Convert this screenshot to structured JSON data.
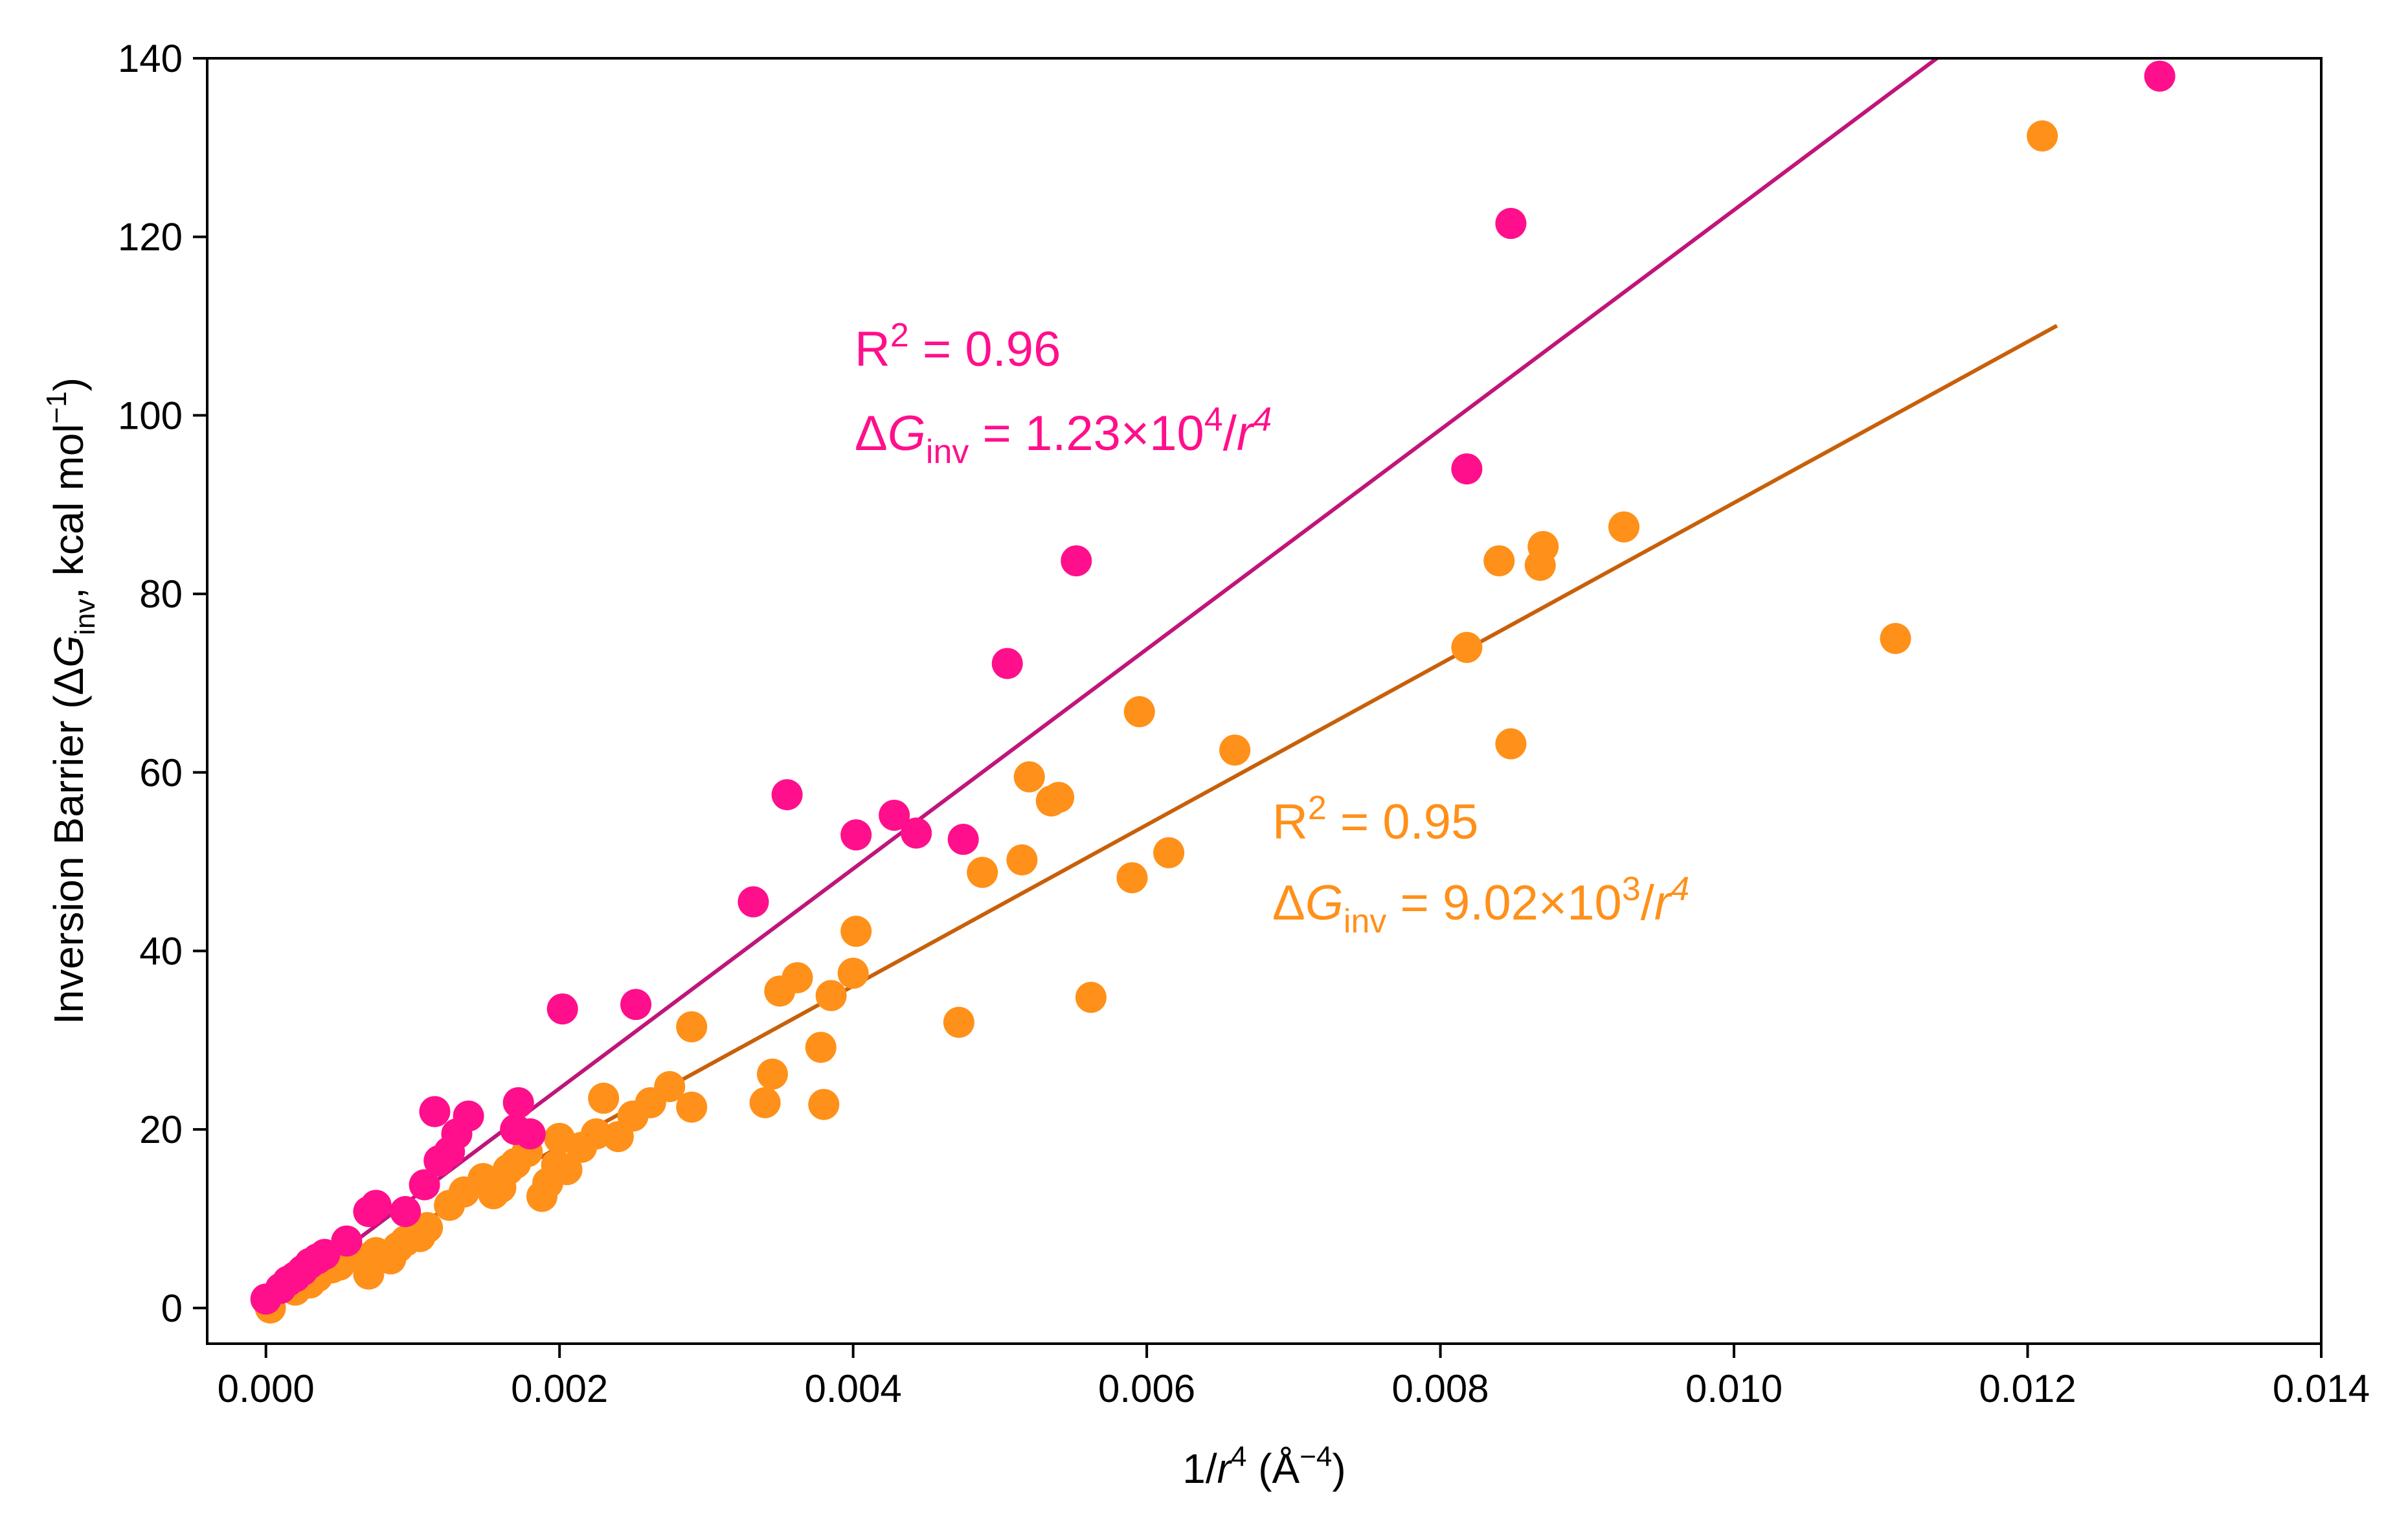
{
  "chart_data": {
    "type": "scatter",
    "title": "",
    "xlabel": {
      "pre": "1/",
      "italic": "r",
      "sup": "4",
      "post": " (Å",
      "unit_sup": "−4",
      "close": ")"
    },
    "ylabel": {
      "pre": "Inversion Barrier (Δ",
      "italic": "G",
      "sub": "inv",
      "post": ", kcal mol",
      "sup": "−1",
      "close": ")"
    },
    "xlim": [
      -0.0004,
      0.014
    ],
    "ylim": [
      -4,
      140
    ],
    "xticks": [
      0.0,
      0.002,
      0.004,
      0.006,
      0.008,
      0.01,
      0.012,
      0.014
    ],
    "xtick_labels": [
      "0.000",
      "0.002",
      "0.004",
      "0.006",
      "0.008",
      "0.010",
      "0.012",
      "0.014"
    ],
    "yticks": [
      0,
      20,
      40,
      60,
      80,
      100,
      120,
      140
    ],
    "ytick_labels": [
      "0",
      "20",
      "40",
      "60",
      "80",
      "100",
      "120",
      "140"
    ],
    "grid": false,
    "legend": "none",
    "series": [
      {
        "name": "pink",
        "color": "#ff0f8c",
        "fit_color": "#c0157a",
        "fit": {
          "slope": 12300,
          "x_start": 0.0,
          "x_end": 0.0114
        },
        "annotation": {
          "r2_pre": "R",
          "r2_sup": "2",
          "r2_post": " = 0.96",
          "eq_delta": "Δ",
          "eq_G": "G",
          "eq_sub": "inv",
          "eq_mid": " = 1.23×10",
          "eq_exp": "4",
          "eq_slash": "/",
          "eq_r": "r",
          "eq_rexp": "4"
        },
        "points": [
          [
            0.0,
            1.0
          ],
          [
            0.0001,
            2.2
          ],
          [
            0.00015,
            3.0
          ],
          [
            0.0002,
            3.5
          ],
          [
            0.00025,
            4.2
          ],
          [
            0.0003,
            5.0
          ],
          [
            0.00035,
            5.5
          ],
          [
            0.0004,
            6.0
          ],
          [
            0.00055,
            7.5
          ],
          [
            0.0007,
            10.8
          ],
          [
            0.00075,
            11.5
          ],
          [
            0.00095,
            10.8
          ],
          [
            0.00108,
            13.8
          ],
          [
            0.00115,
            22.0
          ],
          [
            0.00118,
            16.5
          ],
          [
            0.00125,
            17.5
          ],
          [
            0.0013,
            19.5
          ],
          [
            0.00138,
            21.5
          ],
          [
            0.0017,
            20.0
          ],
          [
            0.00172,
            23.0
          ],
          [
            0.0018,
            19.5
          ],
          [
            0.00202,
            33.5
          ],
          [
            0.00252,
            34.0
          ],
          [
            0.00332,
            45.5
          ],
          [
            0.00355,
            57.5
          ],
          [
            0.00402,
            53.0
          ],
          [
            0.00428,
            55.2
          ],
          [
            0.00443,
            53.2
          ],
          [
            0.00475,
            52.5
          ],
          [
            0.00505,
            72.2
          ],
          [
            0.00552,
            83.7
          ],
          [
            0.00818,
            94.0
          ],
          [
            0.00848,
            121.5
          ],
          [
            0.0129,
            138.0
          ]
        ]
      },
      {
        "name": "orange",
        "color": "#ff9019",
        "fit_color": "#c8600a",
        "fit": {
          "slope": 9020,
          "x_start": 0.0,
          "x_end": 0.0122
        },
        "annotation": {
          "r2_pre": "R",
          "r2_sup": "2",
          "r2_post": " = 0.95",
          "eq_delta": "Δ",
          "eq_G": "G",
          "eq_sub": "inv",
          "eq_mid": " = 9.02×10",
          "eq_exp": "3",
          "eq_slash": "/",
          "eq_r": "r",
          "eq_rexp": "4"
        },
        "points": [
          [
            3e-05,
            0.0
          ],
          [
            0.0002,
            2.0
          ],
          [
            0.0003,
            2.8
          ],
          [
            0.00035,
            3.5
          ],
          [
            0.00045,
            4.5
          ],
          [
            0.0005,
            4.8
          ],
          [
            0.00065,
            5.5
          ],
          [
            0.0007,
            3.8
          ],
          [
            0.00075,
            6.2
          ],
          [
            0.00085,
            5.5
          ],
          [
            0.0009,
            6.8
          ],
          [
            0.00095,
            7.5
          ],
          [
            0.00105,
            8.0
          ],
          [
            0.0011,
            9.0
          ],
          [
            0.00125,
            11.5
          ],
          [
            0.00135,
            13.0
          ],
          [
            0.00148,
            14.5
          ],
          [
            0.00155,
            12.8
          ],
          [
            0.0016,
            13.5
          ],
          [
            0.00165,
            15.5
          ],
          [
            0.0017,
            16.2
          ],
          [
            0.00178,
            17.5
          ],
          [
            0.00188,
            12.5
          ],
          [
            0.00192,
            14.0
          ],
          [
            0.00198,
            16.0
          ],
          [
            0.002,
            19.0
          ],
          [
            0.00205,
            15.5
          ],
          [
            0.00215,
            18.0
          ],
          [
            0.00225,
            19.5
          ],
          [
            0.0023,
            23.5
          ],
          [
            0.0024,
            19.2
          ],
          [
            0.0025,
            21.5
          ],
          [
            0.00262,
            23.0
          ],
          [
            0.00275,
            24.8
          ],
          [
            0.0029,
            22.5
          ],
          [
            0.0029,
            31.5
          ],
          [
            0.0034,
            23.0
          ],
          [
            0.00345,
            26.2
          ],
          [
            0.0035,
            35.5
          ],
          [
            0.00362,
            37.0
          ],
          [
            0.00378,
            29.2
          ],
          [
            0.0038,
            22.8
          ],
          [
            0.00385,
            35.0
          ],
          [
            0.004,
            37.5
          ],
          [
            0.00402,
            42.2
          ],
          [
            0.00472,
            32.0
          ],
          [
            0.00488,
            48.8
          ],
          [
            0.00515,
            50.2
          ],
          [
            0.0052,
            59.5
          ],
          [
            0.00535,
            56.8
          ],
          [
            0.0054,
            57.2
          ],
          [
            0.00562,
            34.8
          ],
          [
            0.0059,
            48.2
          ],
          [
            0.00595,
            66.8
          ],
          [
            0.00615,
            51.0
          ],
          [
            0.0066,
            62.5
          ],
          [
            0.00818,
            74.0
          ],
          [
            0.0084,
            83.7
          ],
          [
            0.00848,
            63.2
          ],
          [
            0.00868,
            83.2
          ],
          [
            0.0087,
            85.3
          ],
          [
            0.00925,
            87.5
          ],
          [
            0.0111,
            75.0
          ],
          [
            0.0121,
            131.3
          ]
        ]
      }
    ]
  }
}
